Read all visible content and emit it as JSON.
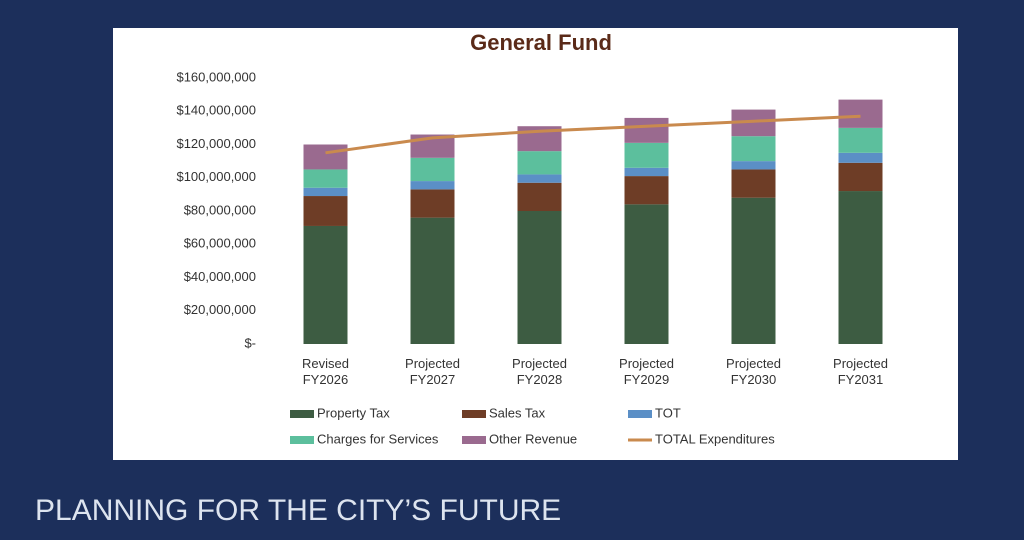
{
  "chart_data": {
    "type": "bar",
    "stacked": true,
    "title": "General Fund",
    "categories": [
      "Revised FY2026",
      "Projected FY2027",
      "Projected FY2028",
      "Projected FY2029",
      "Projected FY2030",
      "Projected FY2031"
    ],
    "series": [
      {
        "name": "Property Tax",
        "color": "#3d5c42",
        "values": [
          71000000,
          76000000,
          80000000,
          84000000,
          88000000,
          92000000
        ]
      },
      {
        "name": "Sales Tax",
        "color": "#6e3d26",
        "values": [
          18000000,
          17000000,
          17000000,
          17000000,
          17000000,
          17000000
        ]
      },
      {
        "name": "TOT",
        "color": "#5b8fc6",
        "values": [
          5000000,
          5000000,
          5000000,
          5000000,
          5000000,
          6000000
        ]
      },
      {
        "name": "Charges for Services",
        "color": "#5cbf9d",
        "values": [
          11000000,
          14000000,
          14000000,
          15000000,
          15000000,
          15000000
        ]
      },
      {
        "name": "Other Revenue",
        "color": "#9a6a8f",
        "values": [
          15000000,
          14000000,
          15000000,
          15000000,
          16000000,
          17000000
        ]
      },
      {
        "name": "TOTAL Expenditures",
        "type": "line",
        "color": "#c98a4e",
        "values": [
          115000000,
          124000000,
          128000000,
          131000000,
          134000000,
          137000000
        ]
      }
    ],
    "ylim": [
      0,
      160000000
    ],
    "yticks": [
      {
        "value": 0,
        "label": "$-"
      },
      {
        "value": 20000000,
        "label": "$20,000,000"
      },
      {
        "value": 40000000,
        "label": "$40,000,000"
      },
      {
        "value": 60000000,
        "label": "$60,000,000"
      },
      {
        "value": 80000000,
        "label": "$80,000,000"
      },
      {
        "value": 100000000,
        "label": "$100,000,000"
      },
      {
        "value": 120000000,
        "label": "$120,000,000"
      },
      {
        "value": 140000000,
        "label": "$140,000,000"
      },
      {
        "value": 160000000,
        "label": "$160,000,000"
      }
    ],
    "grid": false,
    "legend": "bottom"
  },
  "footer": "PLANNING FOR THE CITY’S FUTURE"
}
